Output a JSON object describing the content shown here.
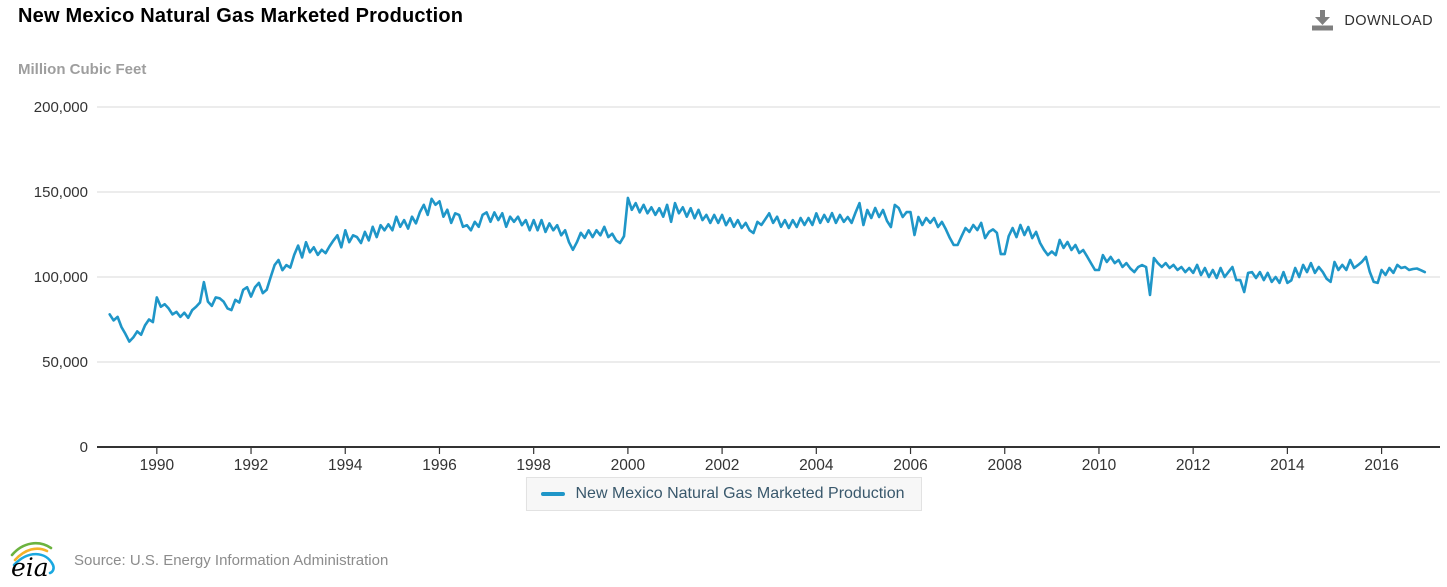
{
  "header": {
    "title": "New Mexico Natural Gas Marketed Production",
    "download_label": "DOWNLOAD"
  },
  "unit_label": "Million Cubic Feet",
  "legend": {
    "label": "New Mexico Natural Gas Marketed Production"
  },
  "footer": {
    "logo_text": "eia",
    "source": "Source: U.S. Energy Information Administration"
  },
  "colors": {
    "line": "#1f96c8",
    "grid": "#d8d8d8",
    "axis": "#333333",
    "tick_text": "#333333"
  },
  "chart_data": {
    "type": "line",
    "title": "New Mexico Natural Gas Marketed Production",
    "ylabel": "Million Cubic Feet",
    "xlabel": "",
    "legend_position": "bottom-center",
    "grid": "horizontal",
    "series_name": "New Mexico Natural Gas Marketed Production",
    "frequency": "monthly",
    "start_year": 1989,
    "end_year": 2016,
    "xlim": [
      1988.73,
      2017.24
    ],
    "ylim": [
      0,
      200000
    ],
    "x_ticks": [
      1990,
      1992,
      1994,
      1996,
      1998,
      2000,
      2002,
      2004,
      2006,
      2008,
      2010,
      2012,
      2014,
      2016
    ],
    "y_ticks": [
      0,
      50000,
      100000,
      150000,
      200000
    ],
    "y_tick_labels": [
      "0",
      "50,000",
      "100,000",
      "150,000",
      "200,000"
    ],
    "values": [
      78000,
      74500,
      76500,
      70500,
      66500,
      62000,
      64500,
      68000,
      66000,
      71500,
      75000,
      73500,
      88000,
      82500,
      84000,
      81500,
      78000,
      79500,
      76500,
      79000,
      76000,
      80500,
      82500,
      85000,
      97000,
      85500,
      83000,
      88000,
      87500,
      85500,
      81500,
      80500,
      86500,
      85000,
      92500,
      94000,
      88500,
      94000,
      96500,
      90500,
      92500,
      100000,
      107000,
      110000,
      104000,
      107000,
      105500,
      113000,
      118500,
      111500,
      120500,
      114500,
      117500,
      113000,
      116000,
      114000,
      118000,
      121500,
      124500,
      117500,
      127500,
      120500,
      124500,
      123500,
      120000,
      126500,
      121500,
      129500,
      123500,
      130500,
      127500,
      131000,
      127500,
      135500,
      129500,
      133500,
      128500,
      135500,
      131500,
      138000,
      142500,
      136500,
      146000,
      142500,
      144500,
      135500,
      139500,
      131800,
      137500,
      136500,
      129500,
      130500,
      127500,
      132500,
      129500,
      136500,
      138000,
      132500,
      138000,
      133500,
      137500,
      129500,
      135500,
      132500,
      135500,
      130500,
      133500,
      127500,
      133500,
      127500,
      133500,
      126500,
      131500,
      127500,
      130500,
      124500,
      127500,
      120500,
      116000,
      120500,
      126000,
      123000,
      127500,
      123500,
      127500,
      124500,
      129500,
      123500,
      125500,
      121500,
      120000,
      124000,
      146500,
      139500,
      143500,
      138000,
      142500,
      137500,
      141000,
      136500,
      140500,
      135500,
      142500,
      132500,
      143500,
      137500,
      141000,
      135500,
      140500,
      134500,
      139500,
      133500,
      136500,
      131800,
      136500,
      131800,
      136500,
      130500,
      134500,
      129500,
      133500,
      128800,
      131800,
      127500,
      125900,
      132400,
      130600,
      134000,
      137500,
      131800,
      135500,
      129500,
      133500,
      128800,
      133500,
      129400,
      134700,
      130600,
      134700,
      130600,
      137500,
      131800,
      136500,
      132400,
      137600,
      131800,
      136500,
      132400,
      135300,
      131800,
      138000,
      143500,
      130600,
      139400,
      134700,
      140600,
      135300,
      139400,
      133000,
      129400,
      142400,
      140600,
      135300,
      138200,
      138200,
      124700,
      135300,
      130600,
      134700,
      131800,
      134700,
      129400,
      132400,
      128000,
      123000,
      118800,
      118800,
      124000,
      128800,
      126500,
      130600,
      127600,
      131800,
      122900,
      126500,
      128000,
      126000,
      113500,
      113500,
      124000,
      128800,
      123500,
      130600,
      124700,
      129400,
      122900,
      126500,
      120000,
      116000,
      112900,
      115000,
      112900,
      121800,
      117100,
      120600,
      115900,
      118800,
      114100,
      115900,
      112000,
      108000,
      104100,
      104100,
      112900,
      108800,
      111800,
      108200,
      110000,
      105900,
      108200,
      105000,
      102900,
      105900,
      107000,
      105900,
      89400,
      111200,
      108200,
      105900,
      108200,
      105300,
      107100,
      104100,
      105900,
      102900,
      105300,
      102400,
      107100,
      101200,
      105300,
      100000,
      104100,
      99400,
      105300,
      100000,
      103000,
      105900,
      98200,
      98200,
      91200,
      102400,
      102900,
      99400,
      102900,
      98200,
      102400,
      97100,
      100000,
      96500,
      102900,
      96500,
      98000,
      105300,
      100000,
      107100,
      102900,
      108200,
      102400,
      105900,
      103000,
      99000,
      97100,
      108800,
      104100,
      107100,
      104100,
      110000,
      105300,
      107000,
      109000,
      111800,
      103000,
      97100,
      96500,
      104100,
      101200,
      105300,
      102400,
      107100,
      105300,
      105900,
      104100,
      104700,
      105000,
      104000,
      102900
    ]
  }
}
